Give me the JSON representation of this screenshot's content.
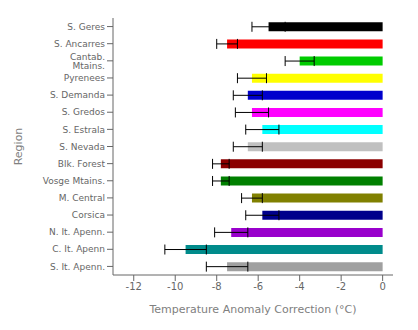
{
  "chart_data": {
    "type": "bar",
    "orientation": "horizontal",
    "categories": [
      "S. Geres",
      "S. Ancarres",
      "Cantab. Mtains.",
      "Pyrenees",
      "S. Demanda",
      "S. Gredos",
      "S. Estrala",
      "S. Nevada",
      "Blk. Forest",
      "Vosge Mtains.",
      "M. Central",
      "Corsica",
      "N. It. Apenn.",
      "C. It. Apenn",
      "S. It. Apenn."
    ],
    "values": [
      -5.5,
      -7.5,
      -4.0,
      -6.3,
      -6.5,
      -6.3,
      -5.8,
      -6.5,
      -7.8,
      -7.8,
      -6.3,
      -5.8,
      -7.3,
      -9.5,
      -7.5
    ],
    "errors": [
      0.8,
      0.5,
      0.7,
      0.7,
      0.7,
      0.8,
      0.8,
      0.7,
      0.4,
      0.4,
      0.5,
      0.8,
      0.8,
      1.0,
      1.0
    ],
    "colors": [
      "#000000",
      "#ff0000",
      "#00cc00",
      "#ffff00",
      "#0000cc",
      "#ff00ff",
      "#00ffff",
      "#c0c0c0",
      "#8b0000",
      "#008000",
      "#808000",
      "#00008b",
      "#9900cc",
      "#008b8b",
      "#a0a0a0"
    ],
    "xlabel": "Temperature Anomaly Correction (°C)",
    "ylabel": "Region",
    "xlim": [
      -13,
      0.5
    ],
    "xticks": [
      -12,
      -10,
      -8,
      -6,
      -4,
      -2,
      0
    ],
    "grid": false
  }
}
